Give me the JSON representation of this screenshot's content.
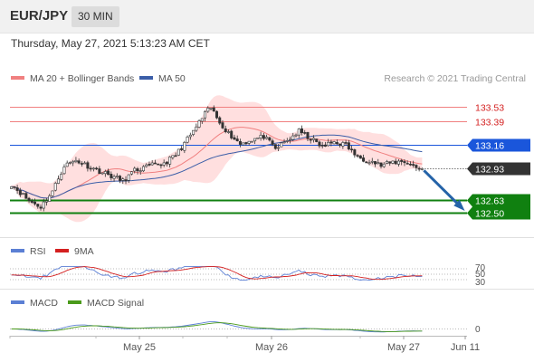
{
  "header": {
    "symbol": "EUR/JPY",
    "timeframe": "30 MIN",
    "datetime": "Thursday, May 27, 2021 5:13:23 AM CET"
  },
  "legend": {
    "ma20": "MA 20 + Bollinger Bands",
    "ma50": "MA 50",
    "credit": "Research © 2021 Trading Central"
  },
  "colors": {
    "candle": "#333333",
    "bollinger_fill": "#ffd9d9",
    "ma20": "#f08080",
    "ma50": "#3b5ea8",
    "resistance": "#f08080",
    "pivot": "#1a56db",
    "support": "#108010",
    "current": "#333333",
    "rsi": "#5b7fd4",
    "rsi_ma": "#d42020",
    "macd": "#5b7fd4",
    "macd_signal": "#4a9a1a",
    "arrow": "#2563a8"
  },
  "chart_data": [
    {
      "type": "candlestick",
      "panel": "price",
      "y_range": [
        132.32,
        133.72
      ],
      "x_range_days": [
        "May 24 12:00",
        "Jun 11"
      ],
      "levels": [
        {
          "value": 133.53,
          "label": "133.53",
          "role": "resistance"
        },
        {
          "value": 133.39,
          "label": "133.39",
          "role": "resistance"
        },
        {
          "value": 133.16,
          "label": "133.16",
          "role": "pivot"
        },
        {
          "value": 132.93,
          "label": "132.93",
          "role": "current"
        },
        {
          "value": 132.63,
          "label": "132.63",
          "role": "support"
        },
        {
          "value": 132.5,
          "label": "132.50",
          "role": "support"
        }
      ],
      "close_anchors": [
        [
          0,
          132.78
        ],
        [
          6,
          132.62
        ],
        [
          10,
          132.56
        ],
        [
          14,
          132.71
        ],
        [
          18,
          132.96
        ],
        [
          22,
          133.01
        ],
        [
          28,
          132.93
        ],
        [
          34,
          132.86
        ],
        [
          38,
          132.81
        ],
        [
          42,
          132.91
        ],
        [
          48,
          132.96
        ],
        [
          52,
          132.98
        ],
        [
          56,
          133.06
        ],
        [
          62,
          133.29
        ],
        [
          66,
          133.46
        ],
        [
          68,
          133.52
        ],
        [
          70,
          133.42
        ],
        [
          74,
          133.27
        ],
        [
          78,
          133.17
        ],
        [
          82,
          133.21
        ],
        [
          86,
          133.24
        ],
        [
          90,
          133.12
        ],
        [
          94,
          133.2
        ],
        [
          98,
          133.29
        ],
        [
          102,
          133.22
        ],
        [
          106,
          133.14
        ],
        [
          110,
          133.19
        ],
        [
          114,
          133.16
        ],
        [
          118,
          133.04
        ],
        [
          122,
          133.01
        ],
        [
          126,
          132.96
        ],
        [
          130,
          132.99
        ],
        [
          134,
          133.0
        ],
        [
          138,
          132.94
        ],
        [
          140,
          132.93
        ]
      ],
      "forecast": {
        "from": 132.93,
        "to": 132.5
      }
    },
    {
      "type": "line",
      "panel": "RSI",
      "series": [
        {
          "name": "RSI"
        },
        {
          "name": "9MA"
        }
      ],
      "levels": [
        70,
        50,
        30
      ],
      "tick_labels": [
        "70",
        "50",
        "30"
      ]
    },
    {
      "type": "line",
      "panel": "MACD",
      "series": [
        {
          "name": "MACD"
        },
        {
          "name": "MACD Signal"
        }
      ],
      "tick_labels": [
        "0"
      ]
    }
  ],
  "x_axis": {
    "ticks": [
      {
        "label": "May 25",
        "day": 1
      },
      {
        "label": "May 26",
        "day": 2
      },
      {
        "label": "May 27",
        "day": 3
      },
      {
        "label": "Jun 11",
        "day": 3.4
      }
    ]
  }
}
